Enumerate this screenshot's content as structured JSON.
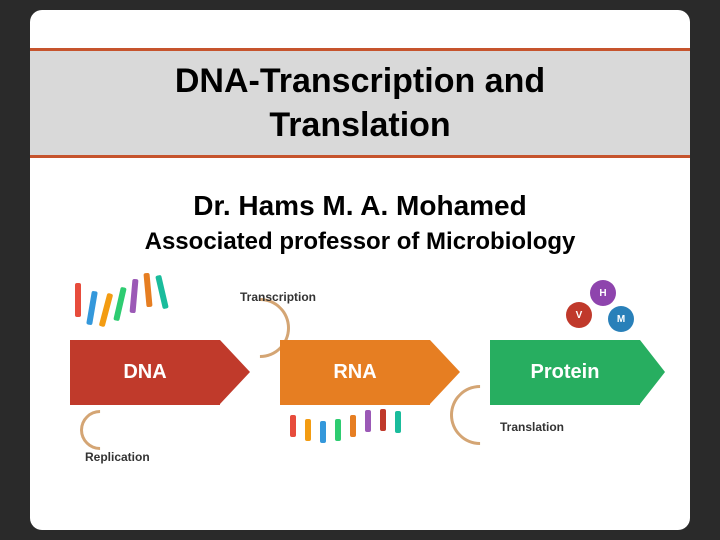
{
  "title": {
    "line1": "DNA-Transcription and",
    "line2": "Translation",
    "fontsize": 34,
    "color": "#000000",
    "band_bg": "#d9d9d9",
    "band_border": "#c6542d"
  },
  "author": {
    "name": "Dr. Hams M. A. Mohamed",
    "role": "Associated professor of Microbiology",
    "name_fontsize": 28,
    "role_fontsize": 24
  },
  "diagram": {
    "type": "flowchart",
    "background_color": "#ffffff",
    "nodes": [
      {
        "id": "dna",
        "label": "DNA",
        "color": "#c03a2b"
      },
      {
        "id": "rna",
        "label": "RNA",
        "color": "#e67e22"
      },
      {
        "id": "protein",
        "label": "Protein",
        "color": "#27ae60"
      }
    ],
    "processes": {
      "replication": "Replication",
      "transcription": "Transcription",
      "translation": "Translation"
    },
    "arrow_color": "#d4a574",
    "protein_beads": [
      {
        "label": "H",
        "color": "#8e44ad"
      },
      {
        "label": "V",
        "color": "#c0392b"
      },
      {
        "label": "M",
        "color": "#2980b9"
      }
    ],
    "helix_colors": [
      "#e74c3c",
      "#3498db",
      "#f39c12",
      "#2ecc71",
      "#9b59b6",
      "#e67e22",
      "#1abc9c"
    ],
    "rna_colors": [
      "#e74c3c",
      "#f39c12",
      "#3498db",
      "#2ecc71",
      "#e67e22",
      "#9b59b6",
      "#c0392b",
      "#1abc9c"
    ]
  },
  "slide_bg": "#ffffff",
  "page_bg": "#2a2a2a"
}
